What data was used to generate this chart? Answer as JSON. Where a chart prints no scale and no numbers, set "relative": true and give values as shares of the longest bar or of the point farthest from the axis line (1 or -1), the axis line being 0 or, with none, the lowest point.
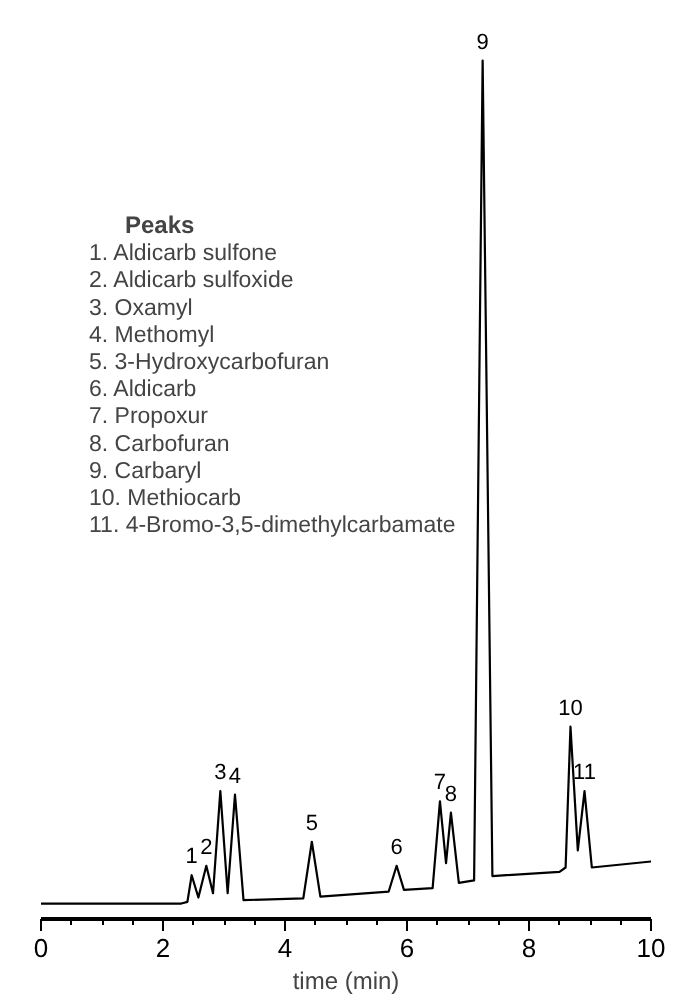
{
  "chart_data": {
    "type": "line",
    "relative": true,
    "xlabel": "time (min)",
    "xlim": [
      0,
      10
    ],
    "xticks": [
      0,
      2,
      4,
      6,
      8,
      10
    ],
    "grid": false,
    "tick_labels": "x",
    "legend_title": "Peaks",
    "x": [
      0,
      2.3,
      2.4,
      2.47,
      2.58,
      2.71,
      2.82,
      2.94,
      3.06,
      3.18,
      3.32,
      4.3,
      4.44,
      4.58,
      5.7,
      5.83,
      5.95,
      6.42,
      6.54,
      6.64,
      6.72,
      6.85,
      7.1,
      7.24,
      7.4,
      8.5,
      8.6,
      8.68,
      8.8,
      8.91,
      9.03,
      10
    ],
    "series": [
      {
        "color": "#000000",
        "values": [
          0.018,
          0.018,
          0.02,
          0.051,
          0.025,
          0.062,
          0.03,
          0.149,
          0.03,
          0.145,
          0.022,
          0.024,
          0.09,
          0.026,
          0.032,
          0.062,
          0.034,
          0.036,
          0.137,
          0.065,
          0.124,
          0.042,
          0.045,
          1.0,
          0.05,
          0.055,
          0.06,
          0.224,
          0.08,
          0.149,
          0.06,
          0.067
        ]
      }
    ],
    "annotations": [
      {
        "text": "1",
        "x": 2.47,
        "y": 0.051
      },
      {
        "text": "2",
        "x": 2.71,
        "y": 0.062
      },
      {
        "text": "3",
        "x": 2.94,
        "y": 0.149
      },
      {
        "text": "4",
        "x": 3.18,
        "y": 0.145
      },
      {
        "text": "5",
        "x": 4.44,
        "y": 0.09
      },
      {
        "text": "6",
        "x": 5.83,
        "y": 0.062
      },
      {
        "text": "7",
        "x": 6.54,
        "y": 0.137
      },
      {
        "text": "8",
        "x": 6.72,
        "y": 0.124
      },
      {
        "text": "9",
        "x": 7.24,
        "y": 1.0
      },
      {
        "text": "10",
        "x": 8.68,
        "y": 0.224
      },
      {
        "text": "11",
        "x": 8.91,
        "y": 0.149
      },
      "1. Aldicarb sulfone",
      "2. Aldicarb sulfoxide",
      "3. Oxamyl",
      "4. Methomyl",
      "5. 3-Hydroxycarbofuran",
      "6. Aldicarb",
      "7. Propoxur",
      "8. Carbofuran",
      "9. Carbaryl",
      "10. Methiocarb",
      "11. 4-Bromo-3,5-dimethylcarbamate"
    ]
  }
}
